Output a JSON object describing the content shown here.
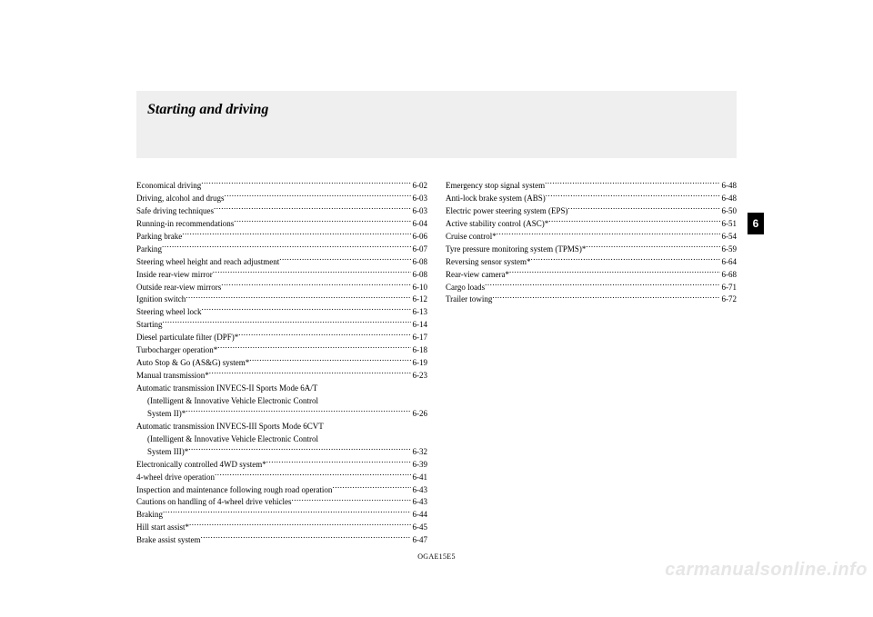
{
  "header": {
    "title": "Starting and driving"
  },
  "side_tab": "6",
  "doc_code": "OGAE15E5",
  "watermark": "carmanualsonline.info",
  "toc": {
    "left": [
      {
        "label": "Economical driving",
        "page": "6-02"
      },
      {
        "label": "Driving, alcohol and drugs",
        "page": "6-03"
      },
      {
        "label": "Safe driving techniques",
        "page": "6-03"
      },
      {
        "label": "Running-in recommendations",
        "page": "6-04"
      },
      {
        "label": "Parking brake",
        "page": "6-06"
      },
      {
        "label": "Parking",
        "page": "6-07"
      },
      {
        "label": "Steering wheel height and reach adjustment",
        "page": "6-08"
      },
      {
        "label": "Inside rear-view mirror",
        "page": "6-08"
      },
      {
        "label": "Outside rear-view mirrors",
        "page": "6-10"
      },
      {
        "label": "Ignition switch",
        "page": "6-12"
      },
      {
        "label": "Steering wheel lock",
        "page": "6-13"
      },
      {
        "label": "Starting",
        "page": "6-14"
      },
      {
        "label": "Diesel particulate filter (DPF)*",
        "page": "6-17"
      },
      {
        "label": "Turbocharger operation*",
        "page": "6-18"
      },
      {
        "label": "Auto Stop & Go (AS&G) system*",
        "page": "6-19"
      },
      {
        "label": "Manual transmission*",
        "page": "6-23"
      },
      {
        "label": "Automatic transmission INVECS-II Sports Mode 6A/T",
        "page": "",
        "nodots": true
      },
      {
        "label": "(Intelligent & Innovative Vehicle Electronic Control",
        "page": "",
        "indent": true,
        "nodots": true
      },
      {
        "label": "System II)*",
        "page": "6-26",
        "indent": true
      },
      {
        "label": "Automatic transmission INVECS-III Sports Mode 6CVT",
        "page": "",
        "nodots": true
      },
      {
        "label": "(Intelligent & Innovative Vehicle Electronic Control",
        "page": "",
        "indent": true,
        "nodots": true
      },
      {
        "label": "System III)*",
        "page": "6-32",
        "indent": true
      },
      {
        "label": "Electronically controlled 4WD system*",
        "page": "6-39"
      },
      {
        "label": "4-wheel drive operation",
        "page": "6-41"
      },
      {
        "label": "Inspection and maintenance following rough road operation",
        "page": "6-43"
      },
      {
        "label": "Cautions on handling of 4-wheel drive vehicles",
        "page": "6-43"
      },
      {
        "label": "Braking",
        "page": "6-44"
      },
      {
        "label": "Hill start assist*",
        "page": "6-45"
      },
      {
        "label": "Brake assist system",
        "page": "6-47"
      }
    ],
    "right": [
      {
        "label": "Emergency stop signal system",
        "page": "6-48"
      },
      {
        "label": "Anti-lock brake system (ABS)",
        "page": "6-48"
      },
      {
        "label": "Electric power steering system (EPS)",
        "page": "6-50"
      },
      {
        "label": "Active stability control (ASC)*",
        "page": "6-51"
      },
      {
        "label": "Cruise control*",
        "page": "6-54"
      },
      {
        "label": "Tyre pressure monitoring system (TPMS)*",
        "page": "6-59"
      },
      {
        "label": "Reversing sensor system*",
        "page": "6-64"
      },
      {
        "label": "Rear-view camera*",
        "page": "6-68"
      },
      {
        "label": "Cargo loads",
        "page": "6-71"
      },
      {
        "label": "Trailer towing",
        "page": "6-72"
      }
    ]
  }
}
